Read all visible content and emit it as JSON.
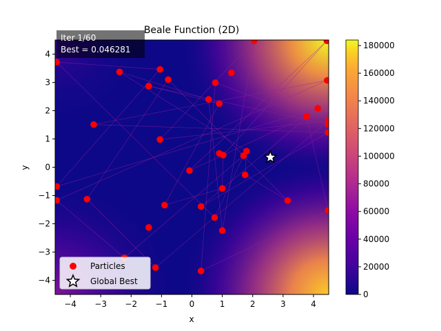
{
  "chart_data": {
    "type": "scatter",
    "title": "Beale Function (2D)",
    "xlabel": "x",
    "ylabel": "y",
    "xlim": [
      -4.5,
      4.5
    ],
    "ylim": [
      -4.5,
      4.5
    ],
    "xticks": [
      "−4",
      "−3",
      "−2",
      "−1",
      "0",
      "1",
      "2",
      "3",
      "4"
    ],
    "yticks": [
      "−4",
      "−3",
      "−2",
      "−1",
      "0",
      "1",
      "2",
      "3",
      "4"
    ],
    "annotation": {
      "iteration": "Iter 1/60",
      "best": "Best = 0.046281"
    },
    "colorbar": {
      "colormap": "plasma",
      "range": [
        0,
        184000
      ],
      "ticks": [
        "0",
        "20000",
        "40000",
        "60000",
        "80000",
        "100000",
        "120000",
        "140000",
        "160000",
        "180000"
      ]
    },
    "legend": {
      "placement": "lower-left",
      "entries": [
        "Particles",
        "Global Best"
      ]
    },
    "colors": {
      "particles": "#ff0000",
      "trail": "#9a1fa0",
      "best_marker": "#ffffff"
    },
    "series": [
      {
        "name": "Particles",
        "points": [
          [
            -4.45,
            3.72
          ],
          [
            -2.38,
            3.37
          ],
          [
            -1.42,
            2.87
          ],
          [
            -1.05,
            3.46
          ],
          [
            -0.78,
            3.1
          ],
          [
            0.77,
            2.99
          ],
          [
            1.3,
            3.34
          ],
          [
            2.05,
            4.47
          ],
          [
            4.44,
            4.47
          ],
          [
            4.45,
            3.07
          ],
          [
            0.55,
            2.4
          ],
          [
            0.9,
            2.25
          ],
          [
            -3.23,
            1.51
          ],
          [
            -1.05,
            0.98
          ],
          [
            3.77,
            1.8
          ],
          [
            4.14,
            2.08
          ],
          [
            4.48,
            1.64
          ],
          [
            4.48,
            1.52
          ],
          [
            4.48,
            1.23
          ],
          [
            0.9,
            0.49
          ],
          [
            1.03,
            0.43
          ],
          [
            1.7,
            0.41
          ],
          [
            1.8,
            0.57
          ],
          [
            -0.08,
            -0.12
          ],
          [
            -4.45,
            -0.68
          ],
          [
            1.75,
            -0.27
          ],
          [
            1.0,
            -0.75
          ],
          [
            -4.45,
            -1.17
          ],
          [
            -3.45,
            -1.13
          ],
          [
            -0.9,
            -1.34
          ],
          [
            0.3,
            -1.39
          ],
          [
            3.15,
            -1.18
          ],
          [
            -1.42,
            -2.13
          ],
          [
            0.75,
            -1.78
          ],
          [
            1.0,
            -2.24
          ],
          [
            4.48,
            -1.53
          ],
          [
            -2.22,
            -3.2
          ],
          [
            -1.2,
            -3.55
          ],
          [
            0.3,
            -3.67
          ]
        ]
      },
      {
        "name": "Global Best",
        "points": [
          [
            2.58,
            0.35
          ]
        ]
      }
    ]
  }
}
